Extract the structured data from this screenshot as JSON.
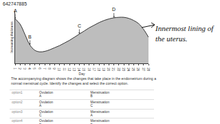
{
  "video_id": "642747885",
  "chart_data": {
    "type": "area",
    "x_label": "Day",
    "y_label": "Increasing thickness",
    "x": [
      1,
      2,
      3,
      4,
      5,
      6,
      7,
      8,
      9,
      10,
      11,
      12,
      13,
      14,
      15,
      16,
      17,
      18,
      19,
      20,
      21,
      22,
      23,
      24,
      25,
      26,
      27,
      28
    ],
    "values": [
      8.5,
      7.5,
      5.5,
      3.5,
      2.5,
      2.2,
      2.3,
      2.6,
      3.0,
      3.4,
      3.9,
      4.4,
      5.0,
      5.6,
      6.2,
      6.8,
      7.3,
      7.8,
      8.2,
      8.5,
      8.7,
      8.8,
      8.8,
      8.6,
      8.2,
      7.6,
      6.5,
      5.0
    ],
    "color": "#bdbdbd",
    "xlim": [
      1,
      28
    ],
    "ylim": [
      0,
      10
    ],
    "xticks": [
      1,
      2,
      3,
      4,
      5,
      6,
      7,
      8,
      9,
      10,
      11,
      12,
      13,
      14,
      15,
      16,
      17,
      18,
      19,
      20,
      21,
      22,
      23,
      24,
      25,
      26,
      27,
      28
    ],
    "tick_labels": "x",
    "annotations": [
      {
        "text": "A",
        "x": 1
      },
      {
        "text": "B",
        "x": 4
      },
      {
        "text": "C",
        "x": 14
      },
      {
        "text": "D",
        "x": 21
      }
    ]
  },
  "handwritten_note": "Innermost lining of the uterus.",
  "question": "The accompanying diagram shows the changes that take place in the endometrium during a normal menstrual cycle. Identify the changes and select the correct option.",
  "options": [
    {
      "label": "option1",
      "cells": [
        [
          "Ovulation",
          "A"
        ],
        [
          "Menstruation",
          "B"
        ]
      ]
    },
    {
      "label": "option2",
      "cells": [
        [
          "Ovulation",
          "A"
        ],
        [
          "Menstruation",
          "C"
        ]
      ]
    },
    {
      "label": "option3",
      "cells": [
        [
          "Ovulation",
          "C"
        ],
        [
          "Menstruation",
          "A"
        ]
      ]
    },
    {
      "label": "option4",
      "cells": [
        [
          "Ovulation",
          "D"
        ],
        [
          "Menstruation",
          "B"
        ]
      ]
    }
  ]
}
